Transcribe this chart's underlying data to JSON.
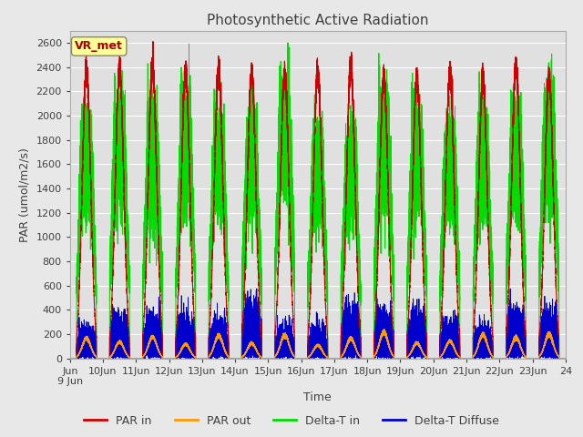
{
  "title": "Photosynthetic Active Radiation",
  "ylabel": "PAR (umol/m2/s)",
  "xlabel": "Time",
  "ylim": [
    0,
    2700
  ],
  "yticks": [
    0,
    200,
    400,
    600,
    800,
    1000,
    1200,
    1400,
    1600,
    1800,
    2000,
    2200,
    2400,
    2600
  ],
  "xtick_labels": [
    "Jun\n9 Jun",
    "10Jun",
    "11Jun",
    "12Jun",
    "13Jun",
    "14Jun",
    "15Jun",
    "16Jun",
    "17Jun",
    "18Jun",
    "19Jun",
    "20Jun",
    "21Jun",
    "22Jun",
    "23Jun",
    "24"
  ],
  "colors": {
    "PAR_in": "#cc0000",
    "PAR_out": "#ff9900",
    "Delta_T_in": "#00dd00",
    "Delta_T_Diffuse": "#0000cc"
  },
  "legend_labels": [
    "PAR in",
    "PAR out",
    "Delta-T in",
    "Delta-T Diffuse"
  ],
  "annotation_text": "VR_met",
  "annotation_color": "#aa0000",
  "annotation_bg": "#ffff99",
  "background_color": "#e8e8e8",
  "plot_bg_color": "#e0e0e0",
  "grid_color": "#ffffff",
  "title_color": "#404040",
  "days": 15
}
